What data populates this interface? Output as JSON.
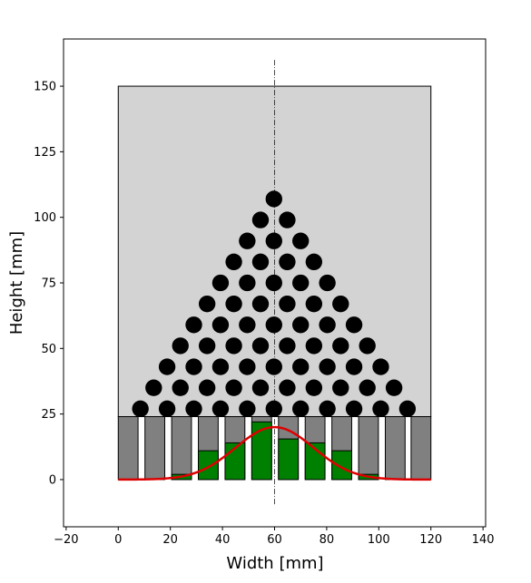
{
  "chart_data": {
    "type": "diagram-histogram",
    "title": "",
    "xlabel": "Width [mm]",
    "ylabel": "Height [mm]",
    "xlim": [
      -21,
      141
    ],
    "ylim": [
      -18,
      168
    ],
    "xticks": [
      -20,
      0,
      20,
      40,
      60,
      80,
      100,
      120,
      140
    ],
    "yticks": [
      0,
      25,
      50,
      75,
      100,
      125,
      150
    ],
    "board": {
      "x0": 0,
      "x1": 120,
      "y0": 24,
      "y1": 150,
      "color": "#d3d3d3"
    },
    "centerline_x": 60,
    "centerline_y_range": [
      -10,
      160
    ],
    "peg_radius": 3.2,
    "peg_color": "#000000",
    "peg_rows": [
      {
        "y": 27,
        "x": [
          8.5,
          18.75,
          29,
          39.25,
          49.5,
          59.75,
          70,
          80.25,
          90.5,
          100.75,
          111
        ]
      },
      {
        "y": 35,
        "x": [
          13.6,
          23.85,
          34.1,
          44.35,
          54.6,
          64.85,
          75.1,
          85.35,
          95.6,
          105.85
        ]
      },
      {
        "y": 43,
        "x": [
          18.75,
          29,
          39.25,
          49.5,
          59.75,
          70,
          80.25,
          90.5,
          100.75
        ]
      },
      {
        "y": 51,
        "x": [
          23.85,
          34.1,
          44.35,
          54.6,
          64.85,
          75.1,
          85.35,
          95.6
        ]
      },
      {
        "y": 59,
        "x": [
          29,
          39.25,
          49.5,
          59.75,
          70,
          80.25,
          90.5
        ]
      },
      {
        "y": 67,
        "x": [
          34.1,
          44.35,
          54.6,
          64.85,
          75.1,
          85.35
        ]
      },
      {
        "y": 75,
        "x": [
          39.25,
          49.5,
          59.75,
          70,
          80.25
        ]
      },
      {
        "y": 83,
        "x": [
          44.35,
          54.6,
          64.85,
          75.1
        ]
      },
      {
        "y": 91,
        "x": [
          49.5,
          59.75,
          70
        ]
      },
      {
        "y": 99,
        "x": [
          54.6,
          64.85
        ]
      },
      {
        "y": 107,
        "x": [
          59.75
        ]
      }
    ],
    "bin_width": 7.6,
    "bin_capacity": 24,
    "bin_color": "#808080",
    "bins": [
      {
        "center": 3.8,
        "count": 0
      },
      {
        "center": 14.05,
        "count": 0
      },
      {
        "center": 24.3,
        "count": 2
      },
      {
        "center": 34.55,
        "count": 11
      },
      {
        "center": 44.8,
        "count": 14
      },
      {
        "center": 55.05,
        "count": 22
      },
      {
        "center": 65.3,
        "count": 15.5
      },
      {
        "center": 75.55,
        "count": 14
      },
      {
        "center": 85.8,
        "count": 11
      },
      {
        "center": 96.05,
        "count": 2
      },
      {
        "center": 106.3,
        "count": 0
      },
      {
        "center": 116.2,
        "count": 0
      }
    ],
    "fill_color": "#008000",
    "curve": {
      "type": "gaussian",
      "mean": 60,
      "sigma": 15,
      "amplitude": 20,
      "x_range": [
        0,
        120
      ],
      "color": "#dd0000"
    }
  }
}
